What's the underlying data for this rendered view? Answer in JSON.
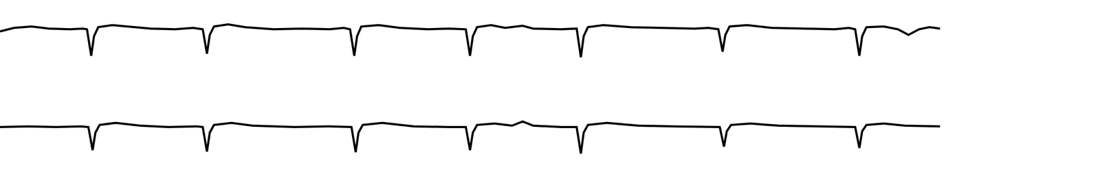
{
  "chart_data": [
    {
      "type": "line",
      "color": "#000000",
      "tick_labels": false,
      "grid": false,
      "xlim": [
        0,
        1568
      ],
      "ylim": [
        -63,
        42
      ],
      "x": [
        0,
        20,
        45,
        70,
        100,
        118,
        124,
        130,
        134,
        140,
        160,
        185,
        215,
        250,
        275,
        289,
        295,
        299,
        305,
        325,
        350,
        390,
        430,
        470,
        490,
        499,
        505,
        509,
        515,
        540,
        570,
        610,
        640,
        664,
        670,
        674,
        680,
        700,
        720,
        745,
        760,
        800,
        822,
        828,
        832,
        838,
        860,
        900,
        950,
        990,
        1010,
        1024,
        1030,
        1034,
        1040,
        1065,
        1100,
        1150,
        1190,
        1210,
        1219,
        1225,
        1229,
        1235,
        1260,
        1280,
        1295,
        1310,
        1325,
        1340
      ],
      "values": [
        -3,
        2,
        4,
        1,
        0,
        1,
        0,
        -38,
        -10,
        3,
        6,
        4,
        1,
        0,
        2,
        0,
        -35,
        -8,
        4,
        7,
        3,
        0,
        1,
        0,
        2,
        0,
        -38,
        -10,
        4,
        6,
        2,
        0,
        1,
        0,
        -38,
        -10,
        3,
        6,
        2,
        5,
        1,
        0,
        1,
        -40,
        -10,
        3,
        6,
        3,
        2,
        1,
        2,
        0,
        -32,
        -8,
        4,
        6,
        2,
        1,
        0,
        2,
        0,
        -38,
        -10,
        3,
        4,
        0,
        -8,
        0,
        3,
        1
      ]
    },
    {
      "type": "line",
      "color": "#000000",
      "tick_labels": false,
      "grid": false,
      "xlim": [
        0,
        1568
      ],
      "ylim": [
        -80,
        77
      ],
      "x": [
        0,
        40,
        80,
        115,
        126,
        132,
        136,
        142,
        165,
        200,
        240,
        280,
        289,
        295,
        299,
        305,
        330,
        360,
        420,
        470,
        501,
        507,
        511,
        517,
        545,
        590,
        640,
        664,
        670,
        674,
        680,
        705,
        730,
        745,
        760,
        800,
        822,
        828,
        832,
        838,
        865,
        910,
        960,
        1000,
        1026,
        1032,
        1036,
        1042,
        1070,
        1110,
        1160,
        1200,
        1219,
        1225,
        1229,
        1235,
        1260,
        1290,
        1340
      ],
      "values": [
        0,
        1,
        0,
        1,
        0,
        -33,
        -8,
        3,
        6,
        2,
        0,
        1,
        0,
        -35,
        -8,
        3,
        6,
        2,
        0,
        1,
        0,
        -36,
        -8,
        3,
        6,
        1,
        0,
        0,
        -33,
        -8,
        3,
        5,
        2,
        8,
        2,
        0,
        0,
        -38,
        -8,
        3,
        6,
        2,
        1,
        0,
        0,
        -28,
        -6,
        3,
        5,
        2,
        1,
        0,
        0,
        -30,
        -6,
        3,
        5,
        2,
        1
      ]
    }
  ]
}
